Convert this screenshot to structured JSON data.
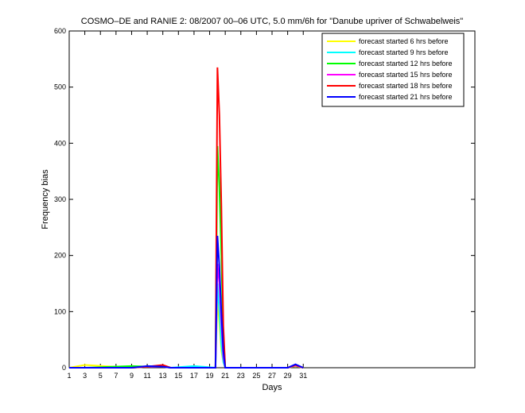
{
  "chart_data": {
    "type": "line",
    "title": "COSMO–DE and RANIE 2: 08/2007 00–06 UTC, 5.0 mm/6h for \"Danube upriver of Schwabelweis\"",
    "x_label": "Days",
    "y_label": "Frequency bias",
    "x": [
      1,
      3,
      9,
      11,
      13,
      14,
      17,
      19.75,
      20,
      20.25,
      20.5,
      20.75,
      21,
      29,
      30,
      31
    ],
    "series": [
      {
        "name": "forecast started 6 hrs before",
        "color": "#ffff00",
        "values": [
          0,
          5,
          0,
          2,
          3,
          0,
          0,
          0,
          120,
          80,
          30,
          10,
          0,
          0,
          3,
          0
        ]
      },
      {
        "name": "forecast started 9 hrs before",
        "color": "#00ffff",
        "values": [
          0,
          0,
          0,
          2,
          2,
          0,
          3,
          0,
          150,
          100,
          40,
          10,
          0,
          0,
          4,
          0
        ]
      },
      {
        "name": "forecast started 12 hrs before",
        "color": "#00ff00",
        "values": [
          0,
          0,
          3,
          2,
          3,
          0,
          0,
          0,
          395,
          320,
          200,
          60,
          0,
          0,
          4,
          0
        ]
      },
      {
        "name": "forecast started 15 hrs before",
        "color": "#ff00ff",
        "values": [
          0,
          0,
          0,
          2,
          2,
          0,
          0,
          0,
          185,
          150,
          80,
          20,
          0,
          0,
          4,
          0
        ]
      },
      {
        "name": "forecast started 18 hrs before",
        "color": "#ff0000",
        "values": [
          0,
          0,
          0,
          2,
          5,
          0,
          0,
          0,
          535,
          450,
          290,
          75,
          0,
          0,
          5,
          0
        ]
      },
      {
        "name": "forecast started 21 hrs before",
        "color": "#0000ff",
        "values": [
          0,
          0,
          0,
          3,
          2,
          0,
          0,
          0,
          235,
          180,
          100,
          30,
          0,
          0,
          6,
          0
        ]
      }
    ],
    "xlim": [
      1,
      53
    ],
    "xticks": [
      1,
      3,
      5,
      7,
      9,
      11,
      13,
      15,
      17,
      19,
      21,
      23,
      25,
      27,
      29,
      31
    ],
    "ylim": [
      0,
      600
    ],
    "yticks": [
      0,
      100,
      200,
      300,
      400,
      500,
      600
    ],
    "legend": "top-right"
  }
}
